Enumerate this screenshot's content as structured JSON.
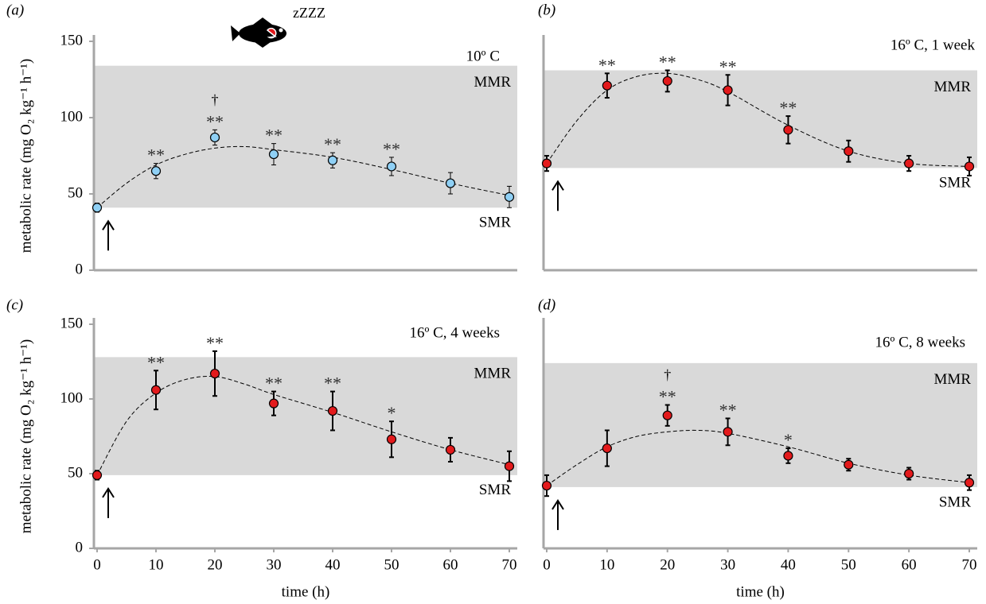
{
  "icon_text": "zZZZ",
  "chart_data": [
    {
      "type": "scatter",
      "panel": "(a)",
      "condition": "10º C",
      "y_label": "metabolic rate (mg O₂ kg⁻¹ h⁻¹)",
      "x": [
        0,
        10,
        20,
        30,
        40,
        50,
        60,
        70
      ],
      "values": [
        41,
        65,
        87,
        76,
        72,
        68,
        57,
        48
      ],
      "errors": [
        3,
        5,
        5,
        7,
        5,
        6,
        7,
        7
      ],
      "color": "#8fd0f5",
      "significance": [
        null,
        "**",
        "**",
        "**",
        "**",
        "**",
        null,
        null
      ],
      "dagger": [
        null,
        null,
        "†",
        null,
        null,
        null,
        null,
        null
      ],
      "band": {
        "upper": 134,
        "lower": 41,
        "upper_label": "MMR",
        "lower_label": "SMR",
        "color": "#d9d9d9"
      },
      "curve": {
        "x": [
          0,
          5,
          10,
          15,
          20,
          25,
          30,
          40,
          50,
          60,
          70
        ],
        "values": [
          41,
          57,
          69,
          76,
          80,
          81,
          79,
          74,
          66,
          57,
          49
        ]
      },
      "xlim": [
        0,
        70
      ],
      "ylim": [
        0,
        150
      ],
      "yticks": [
        0,
        50,
        100,
        150
      ]
    },
    {
      "type": "scatter",
      "panel": "(b)",
      "condition": "16º C, 1 week",
      "x": [
        0,
        10,
        20,
        30,
        40,
        50,
        60,
        70
      ],
      "values": [
        70,
        121,
        124,
        118,
        92,
        78,
        70,
        68
      ],
      "errors": [
        5,
        8,
        7,
        10,
        9,
        7,
        5,
        6
      ],
      "color": "#e31a1c",
      "significance": [
        null,
        "**",
        "**",
        "**",
        "**",
        null,
        null,
        null
      ],
      "band": {
        "upper": 131,
        "lower": 67,
        "upper_label": "MMR",
        "lower_label": "SMR",
        "color": "#d9d9d9"
      },
      "curve": {
        "x": [
          0,
          5,
          10,
          15,
          20,
          25,
          30,
          40,
          50,
          60,
          70
        ],
        "values": [
          70,
          98,
          118,
          127,
          129,
          125,
          117,
          95,
          78,
          70,
          68
        ]
      },
      "xlim": [
        0,
        70
      ],
      "ylim": [
        0,
        150
      ]
    },
    {
      "type": "scatter",
      "panel": "(c)",
      "condition": "16º C, 4 weeks",
      "y_label": "metabolic rate (mg O₂ kg⁻¹ h⁻¹)",
      "x_label": "time (h)",
      "x": [
        0,
        10,
        20,
        30,
        40,
        50,
        60,
        70
      ],
      "values": [
        49,
        106,
        117,
        97,
        92,
        73,
        66,
        55
      ],
      "errors": [
        3,
        13,
        15,
        8,
        13,
        12,
        8,
        10
      ],
      "color": "#e31a1c",
      "significance": [
        null,
        "**",
        "**",
        "**",
        "**",
        "*",
        null,
        null
      ],
      "band": {
        "upper": 128,
        "lower": 49,
        "upper_label": "MMR",
        "lower_label": "SMR",
        "color": "#d9d9d9"
      },
      "curve": {
        "x": [
          0,
          5,
          10,
          15,
          20,
          25,
          30,
          40,
          50,
          60,
          70
        ],
        "values": [
          49,
          85,
          104,
          113,
          115,
          110,
          103,
          91,
          78,
          66,
          56
        ]
      },
      "xlim": [
        0,
        70
      ],
      "ylim": [
        0,
        150
      ],
      "yticks": [
        0,
        50,
        100,
        150
      ],
      "xticks": [
        0,
        10,
        20,
        30,
        40,
        50,
        60,
        70
      ]
    },
    {
      "type": "scatter",
      "panel": "(d)",
      "condition": "16º C, 8 weeks",
      "x_label": "time (h)",
      "x": [
        0,
        10,
        20,
        30,
        40,
        50,
        60,
        70
      ],
      "values": [
        42,
        67,
        89,
        78,
        62,
        56,
        50,
        44
      ],
      "errors": [
        7,
        12,
        7,
        9,
        5,
        4,
        4,
        5
      ],
      "color": "#e31a1c",
      "significance": [
        null,
        null,
        "**",
        "**",
        "*",
        null,
        null,
        null
      ],
      "dagger": [
        null,
        null,
        "†",
        null,
        null,
        null,
        null,
        null
      ],
      "band": {
        "upper": 124,
        "lower": 41,
        "upper_label": "MMR",
        "lower_label": "SMR",
        "color": "#d9d9d9"
      },
      "curve": {
        "x": [
          0,
          5,
          10,
          15,
          20,
          25,
          30,
          40,
          50,
          60,
          70
        ],
        "values": [
          42,
          56,
          68,
          75,
          78,
          79,
          77,
          68,
          57,
          49,
          44
        ]
      },
      "xlim": [
        0,
        70
      ],
      "ylim": [
        0,
        150
      ],
      "xticks": [
        0,
        10,
        20,
        30,
        40,
        50,
        60,
        70
      ]
    }
  ]
}
